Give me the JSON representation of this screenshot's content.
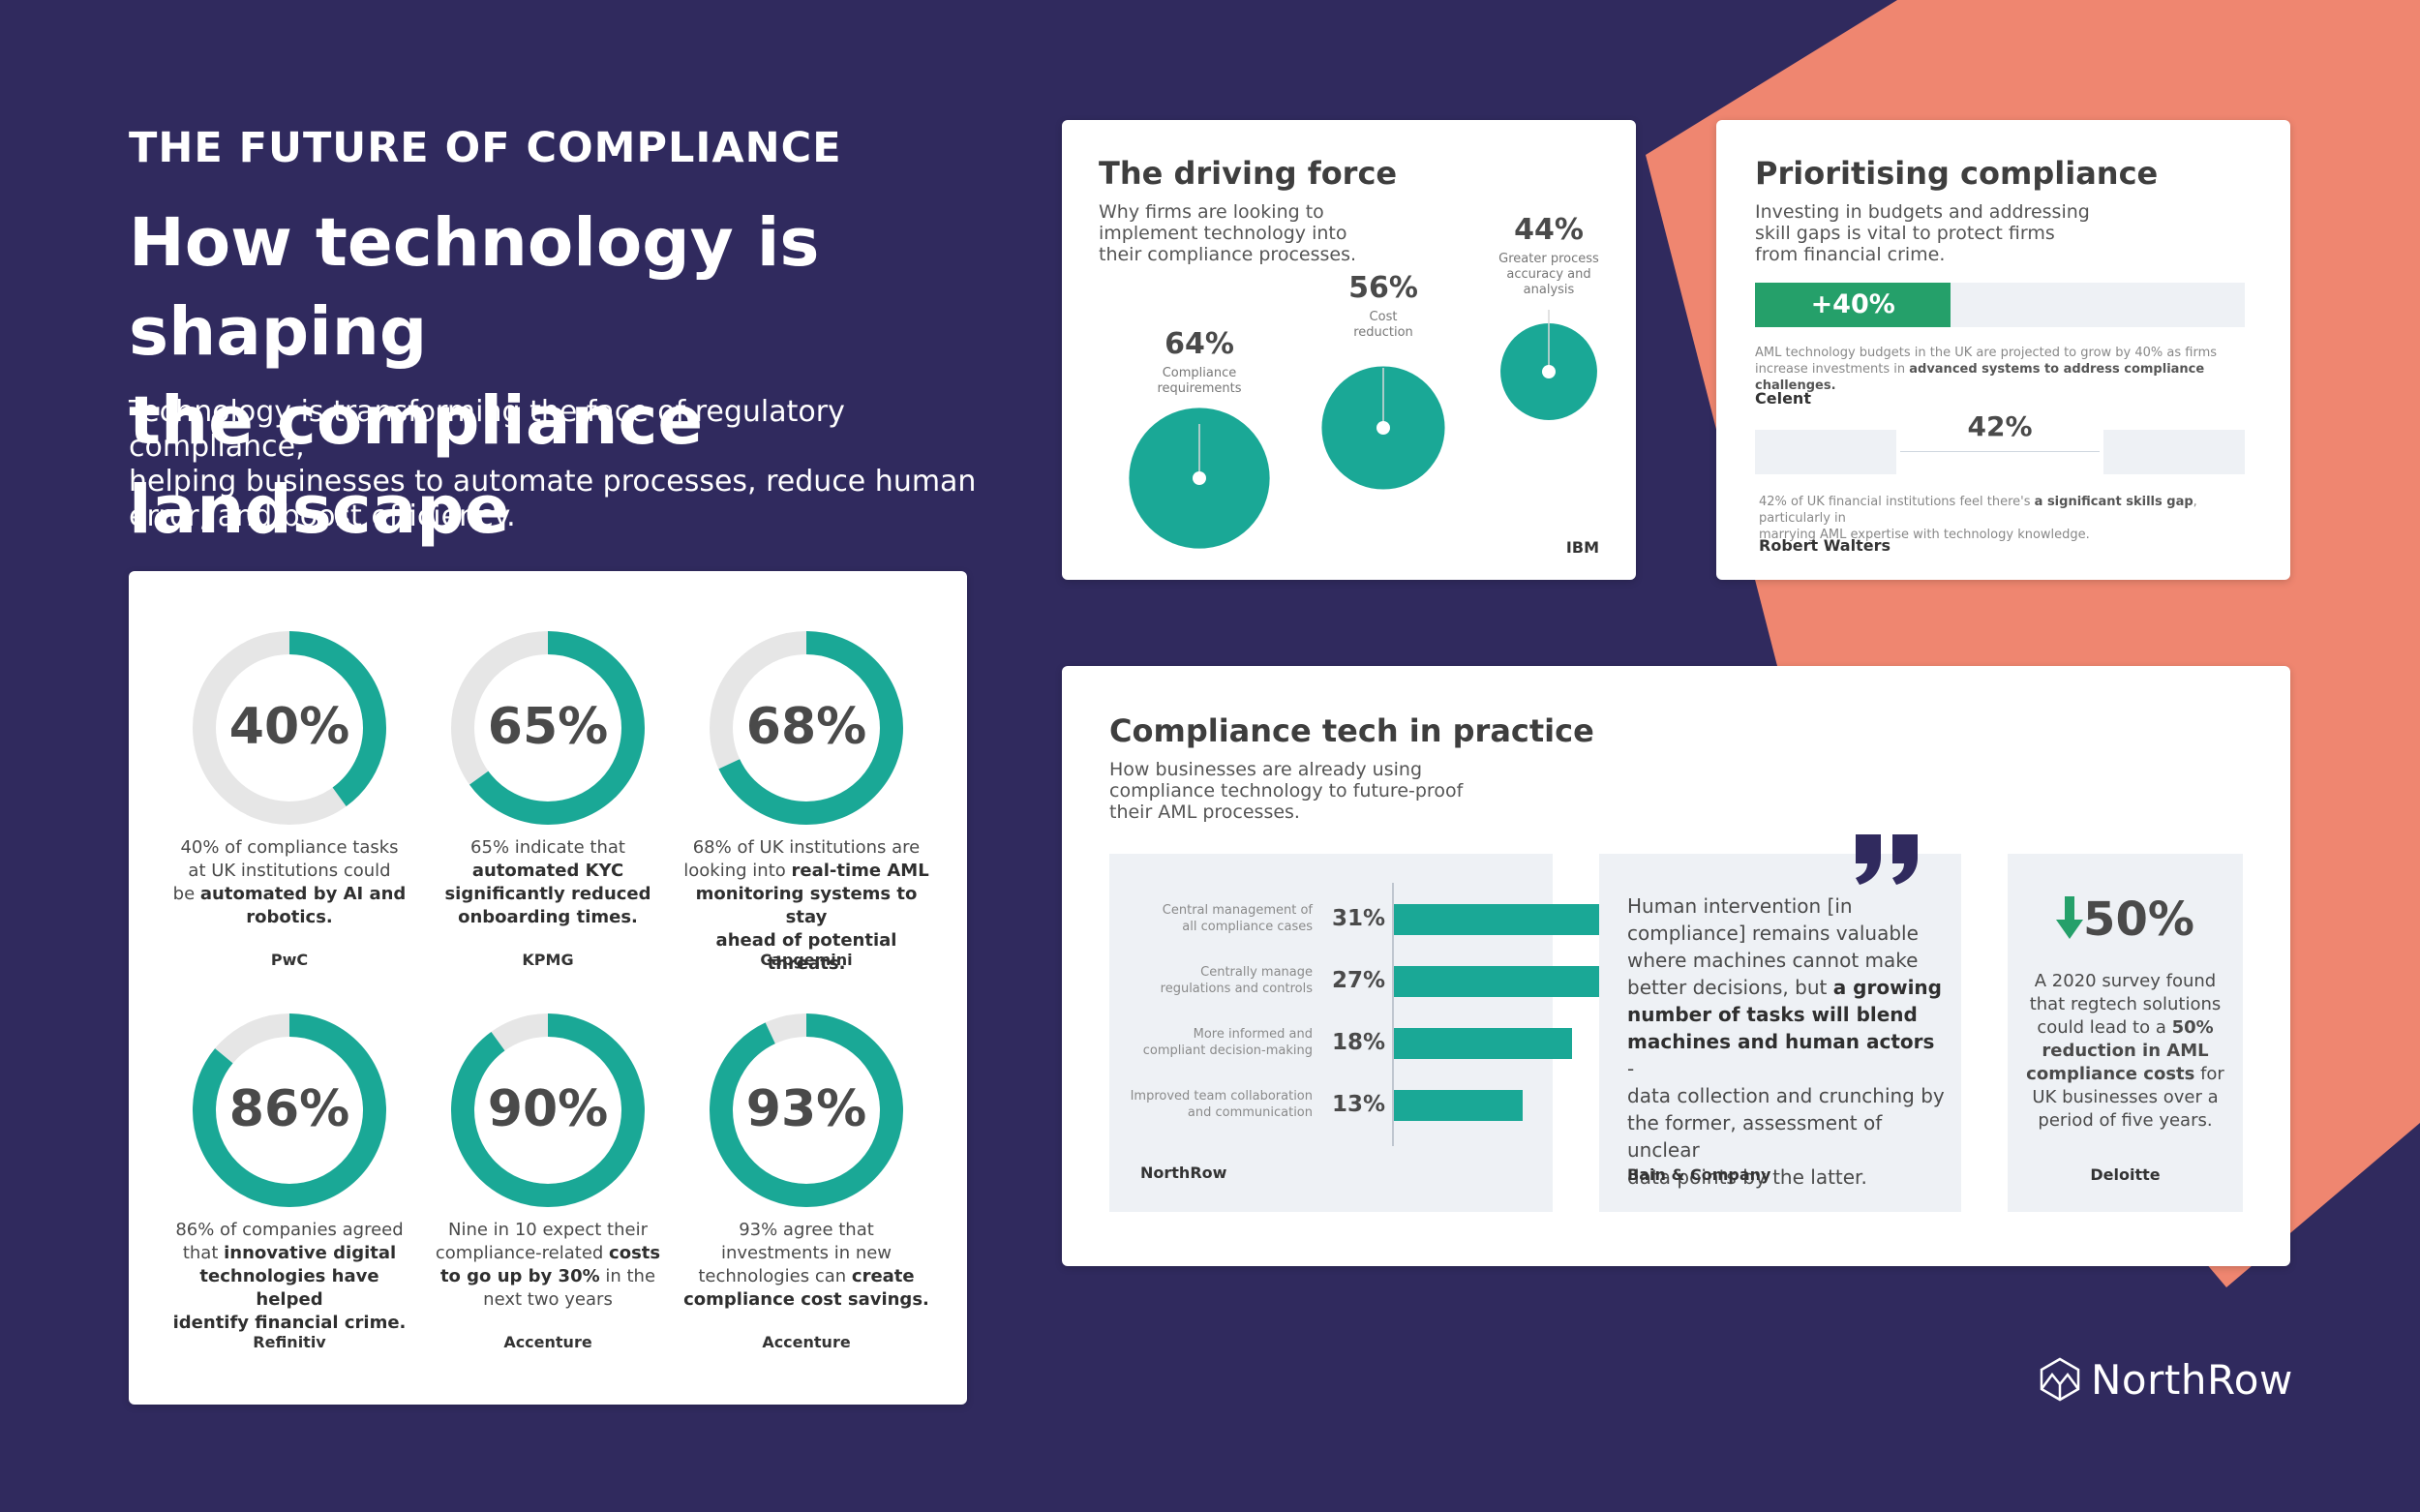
{
  "header": {
    "kicker": "THE FUTURE OF COMPLIANCE",
    "headline_line1": "How technology is shaping",
    "headline_line2": "the compliance landscape",
    "intro_line1": "Technology is transforming the face of regulatory compliance;",
    "intro_line2": "helping businesses to automate processes, reduce human",
    "intro_line3": "error, and boost efficiency."
  },
  "colors": {
    "background": "#302a5e",
    "accent_orange": "#ef8670",
    "teal": "#1aa896",
    "green": "#25a06a",
    "ring_grey": "#e6e6e6"
  },
  "stats_card": {
    "donuts": [
      {
        "label": "40%",
        "value": 40,
        "caption_lines": [
          "40% of compliance tasks",
          "at UK institutions could",
          "be |automated by AI and|",
          "|robotics.|"
        ],
        "source": "PwC"
      },
      {
        "label": "65%",
        "value": 65,
        "caption_lines": [
          "65% indicate that",
          "|automated KYC|",
          "|significantly reduced|",
          "|onboarding times.|"
        ],
        "source": "KPMG"
      },
      {
        "label": "68%",
        "value": 68,
        "caption_lines": [
          "68% of UK institutions are",
          "looking into |real-time AML|",
          "|monitoring systems to stay|",
          "|ahead of potential threats.|"
        ],
        "source": "Capgemini"
      },
      {
        "label": "86%",
        "value": 86,
        "caption_lines": [
          "86% of companies agreed",
          "that |innovative digital|",
          "|technologies have helped|",
          "|identify financial crime.|"
        ],
        "source": "Refinitiv"
      },
      {
        "label": "90%",
        "value": 90,
        "caption_lines": [
          "Nine in 10 expect their",
          "compliance-related |costs|",
          "|to go up by 30%| in the",
          "next two years"
        ],
        "source": "Accenture"
      },
      {
        "label": "93%",
        "value": 93,
        "caption_lines": [
          "93% agree that",
          "investments in new",
          "technologies can |create|",
          "|compliance cost savings.|"
        ],
        "source": "Accenture"
      }
    ]
  },
  "driving_force": {
    "title": "The driving force",
    "subtitle_lines": [
      "Why firms are looking to",
      "implement technology into",
      "their compliance processes."
    ],
    "bubbles": [
      {
        "value": 64,
        "label": "64%",
        "desc_lines": [
          "Compliance",
          "requirements"
        ]
      },
      {
        "value": 56,
        "label": "56%",
        "desc_lines": [
          "Cost",
          "reduction"
        ]
      },
      {
        "value": 44,
        "label": "44%",
        "desc_lines": [
          "Greater process",
          "accuracy and",
          "analysis"
        ]
      }
    ],
    "source": "IBM"
  },
  "prioritising": {
    "title": "Prioritising compliance",
    "subtitle_lines": [
      "Investing in budgets and addressing",
      "skill gaps is vital to protect firms",
      "from financial crime."
    ],
    "growth_bar": {
      "label": "+40%",
      "value": 40
    },
    "note1_line1": "AML technology budgets in the UK are projected to grow by 40% as firms",
    "note1_line2_plain": "increase investments in ",
    "note1_line2_bold": "advanced systems to address compliance challenges.",
    "source1": "Celent",
    "gap_label": "42%",
    "gap_value": 42,
    "note2_line1_plain": "42% of UK financial institutions feel there's ",
    "note2_line1_bold": "a significant skills gap",
    "note2_line1_end": ", particularly in",
    "note2_line2": "marrying AML expertise with technology knowledge.",
    "source2": "Robert Walters"
  },
  "practice": {
    "title": "Compliance tech in practice",
    "subtitle_lines": [
      "How businesses are already using",
      "compliance technology to future-proof",
      "their AML processes."
    ],
    "bar_source": "NorthRow",
    "quote_lines": [
      "Human intervention [in",
      "compliance] remains valuable",
      "where machines cannot make",
      "better decisions, but |a growing|",
      "|number of tasks will blend|",
      "|machines and human actors| -",
      "data collection and crunching by",
      "the former, assessment of unclear",
      "data points by the latter."
    ],
    "quote_source": "Bain & Company",
    "reduction": {
      "label": "50%",
      "icon": "arrow-down-icon",
      "caption_lines": [
        "A 2020 survey found",
        "that regtech solutions",
        "could lead to a |50%|",
        "|reduction in AML|",
        "|compliance costs| for",
        "UK businesses over a",
        "period of five years."
      ],
      "source": "Deloitte"
    }
  },
  "chart_data": [
    {
      "type": "pie",
      "title": "",
      "series": [
        {
          "name": "",
          "values": [
            40,
            65,
            68,
            86,
            90,
            93
          ]
        }
      ],
      "categories": [
        "PwC",
        "KPMG",
        "Capgemini",
        "Refinitiv",
        "Accenture",
        "Accenture"
      ]
    },
    {
      "type": "scatter",
      "title": "The driving force",
      "categories": [
        "Compliance requirements",
        "Cost reduction",
        "Greater process accuracy and analysis"
      ],
      "values": [
        64,
        56,
        44
      ]
    },
    {
      "type": "bar",
      "title": "",
      "categories": [
        "Central management of all compliance cases",
        "Centrally manage regulations and controls",
        "More informed and compliant decision-making",
        "Improved team collaboration and communication"
      ],
      "category_lines": [
        [
          "Central management of",
          "all compliance cases"
        ],
        [
          "Centrally manage",
          "regulations and controls"
        ],
        [
          "More informed and",
          "compliant decision-making"
        ],
        [
          "Improved team collaboration",
          "and communication"
        ]
      ],
      "values": [
        31,
        27,
        18,
        13
      ],
      "value_labels": [
        "31%",
        "27%",
        "18%",
        "13%"
      ]
    }
  ],
  "brand": {
    "name": "NorthRow",
    "icon": "northrow-logo-icon"
  }
}
